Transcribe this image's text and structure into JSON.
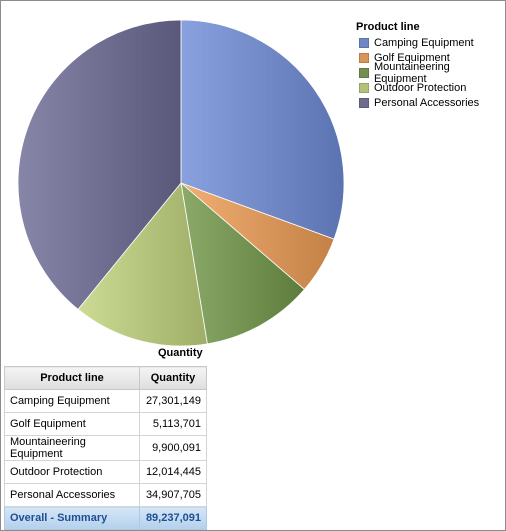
{
  "chart_data": {
    "type": "pie",
    "title": "",
    "label": "Quantity",
    "legend": {
      "title": "Product line",
      "placement": "top-right"
    },
    "categories": [
      "Camping Equipment",
      "Golf Equipment",
      "Mountaineering Equipment",
      "Outdoor Protection",
      "Personal Accessories"
    ],
    "values": [
      27301149,
      5113701,
      9900091,
      12014445,
      34907705
    ],
    "colors": [
      "#6f87c4",
      "#d8955a",
      "#71904f",
      "#b2c27a",
      "#6e6c8e"
    ]
  },
  "table": {
    "headers": [
      "Product line",
      "Quantity"
    ],
    "rows": [
      {
        "label": "Camping Equipment",
        "value": "27,301,149"
      },
      {
        "label": "Golf Equipment",
        "value": "5,113,701"
      },
      {
        "label": "Mountaineering Equipment",
        "value": "9,900,091"
      },
      {
        "label": "Outdoor Protection",
        "value": "12,014,445"
      },
      {
        "label": "Personal Accessories",
        "value": "34,907,705"
      }
    ],
    "total": {
      "label": "Overall - Summary",
      "value": "89,237,091"
    }
  }
}
